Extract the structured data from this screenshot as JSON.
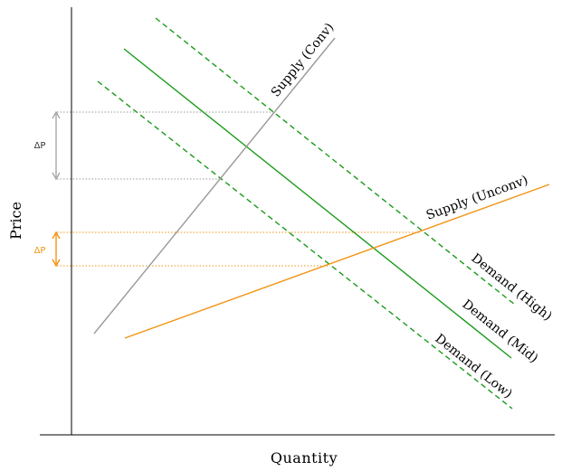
{
  "axes": {
    "x_label": "Quantity",
    "y_label": "Price"
  },
  "lines": {
    "supply_conv": "Supply (Conv)",
    "supply_unconv": "Supply (Unconv)",
    "demand_high": "Demand (High)",
    "demand_mid": "Demand (Mid)",
    "demand_low": "Demand (Low)"
  },
  "annotations": {
    "delta_p_conv": "ΔP",
    "delta_p_unconv": "ΔP"
  },
  "colors": {
    "supply_conv": "#999999",
    "supply_unconv": "#f29312",
    "demand": "#1a9a1a",
    "guide_gray": "#9a9a9a",
    "guide_orange": "#f29312",
    "axis": "#000000"
  },
  "styles": {
    "demand_high": "dashed",
    "demand_mid": "solid",
    "demand_low": "dashed"
  }
}
